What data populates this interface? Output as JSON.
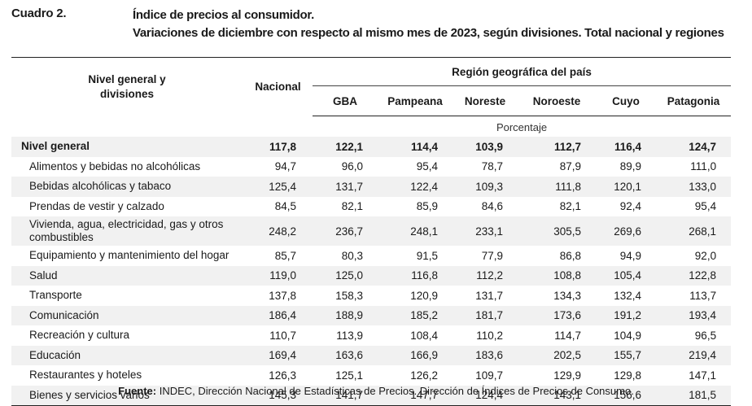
{
  "cuadro": "Cuadro 2.",
  "title_line1": "Índice de precios al consumidor.",
  "title_line2": "Variaciones de diciembre con respecto al mismo mes de 2023, según divisiones. Total nacional y regiones",
  "header": {
    "nivel_line1": "Nivel general y",
    "nivel_line2": "divisiones",
    "nacional": "Nacional",
    "region": "Región geográfica del país",
    "regions": [
      "GBA",
      "Pampeana",
      "Noreste",
      "Noroeste",
      "Cuyo",
      "Patagonia"
    ]
  },
  "unit_label": "Porcentaje",
  "rows": [
    {
      "label": "Nivel general",
      "values": [
        "117,8",
        "122,1",
        "114,4",
        "103,9",
        "112,7",
        "116,4",
        "124,7"
      ]
    },
    {
      "label": "Alimentos y bebidas no alcohólicas",
      "values": [
        "94,7",
        "96,0",
        "95,4",
        "78,7",
        "87,9",
        "89,9",
        "111,0"
      ]
    },
    {
      "label": "Bebidas alcohólicas y tabaco",
      "values": [
        "125,4",
        "131,7",
        "122,4",
        "109,3",
        "111,8",
        "120,1",
        "133,0"
      ]
    },
    {
      "label": "Prendas de vestir y calzado",
      "values": [
        "84,5",
        "82,1",
        "85,9",
        "84,6",
        "82,1",
        "92,4",
        "95,4"
      ]
    },
    {
      "label": "Vivienda, agua, electricidad, gas y otros combustibles",
      "values": [
        "248,2",
        "236,7",
        "248,1",
        "233,1",
        "305,5",
        "269,6",
        "268,1"
      ]
    },
    {
      "label": "Equipamiento y mantenimiento del hogar",
      "values": [
        "85,7",
        "80,3",
        "91,5",
        "77,9",
        "86,8",
        "94,9",
        "92,0"
      ]
    },
    {
      "label": "Salud",
      "values": [
        "119,0",
        "125,0",
        "116,8",
        "112,2",
        "108,8",
        "105,4",
        "122,8"
      ]
    },
    {
      "label": "Transporte",
      "values": [
        "137,8",
        "158,3",
        "120,9",
        "131,7",
        "134,3",
        "132,4",
        "113,7"
      ]
    },
    {
      "label": "Comunicación",
      "values": [
        "186,4",
        "188,9",
        "185,2",
        "181,7",
        "173,6",
        "191,2",
        "193,4"
      ]
    },
    {
      "label": "Recreación y cultura",
      "values": [
        "110,7",
        "113,9",
        "108,4",
        "110,2",
        "114,7",
        "104,9",
        "96,5"
      ]
    },
    {
      "label": "Educación",
      "values": [
        "169,4",
        "163,6",
        "166,9",
        "183,6",
        "202,5",
        "155,7",
        "219,4"
      ]
    },
    {
      "label": "Restaurantes y hoteles",
      "values": [
        "126,3",
        "125,1",
        "126,2",
        "109,7",
        "129,9",
        "129,8",
        "147,1"
      ]
    },
    {
      "label": "Bienes y servicios varios",
      "values": [
        "145,3",
        "141,7",
        "147,7",
        "124,4",
        "143,1",
        "156,6",
        "181,5"
      ]
    }
  ],
  "source_label": "Fuente:",
  "source_text": " INDEC, Dirección Nacional de Estadísticas de Precios. Dirección de Índices de Precios de Consumo."
}
